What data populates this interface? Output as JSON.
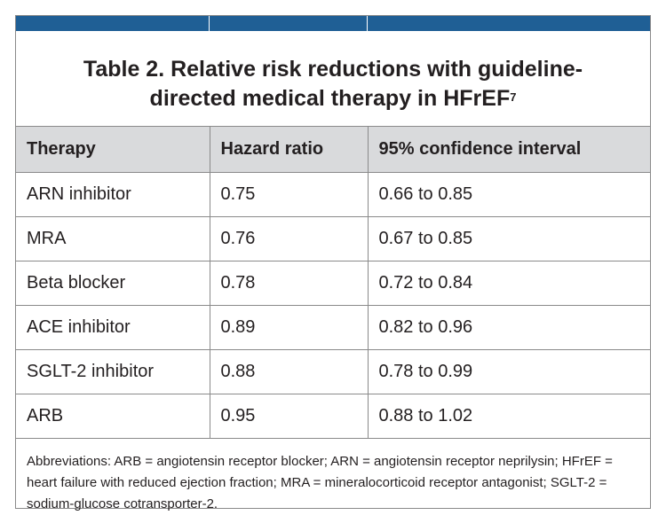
{
  "table": {
    "title_main": "Table 2. Relative risk reductions with guideline-directed medical therapy in HFrEF",
    "title_superscript": "7",
    "headers": [
      "Therapy",
      "Hazard ratio",
      "95% confidence interval"
    ],
    "rows": [
      [
        "ARN inhibitor",
        "0.75",
        "0.66 to 0.85"
      ],
      [
        "MRA",
        "0.76",
        "0.67 to 0.85"
      ],
      [
        "Beta blocker",
        "0.78",
        "0.72 to 0.84"
      ],
      [
        "ACE inhibitor",
        "0.89",
        "0.82 to 0.96"
      ],
      [
        "SGLT-2 inhibitor",
        "0.88",
        "0.78 to 0.99"
      ],
      [
        "ARB",
        "0.95",
        "0.88 to 1.02"
      ]
    ],
    "footnote": "Abbreviations: ARB = angiotensin receptor blocker; ARN = angiotensin receptor neprilysin; HFrEF = heart failure with reduced ejection fraction; MRA = mineralocorticoid receptor antagonist; SGLT-2 = sodium-glucose cotransporter-2."
  },
  "colors": {
    "accent_bar": "#1f5f95",
    "header_background": "#d9dadc",
    "border": "#8a8a8a"
  }
}
